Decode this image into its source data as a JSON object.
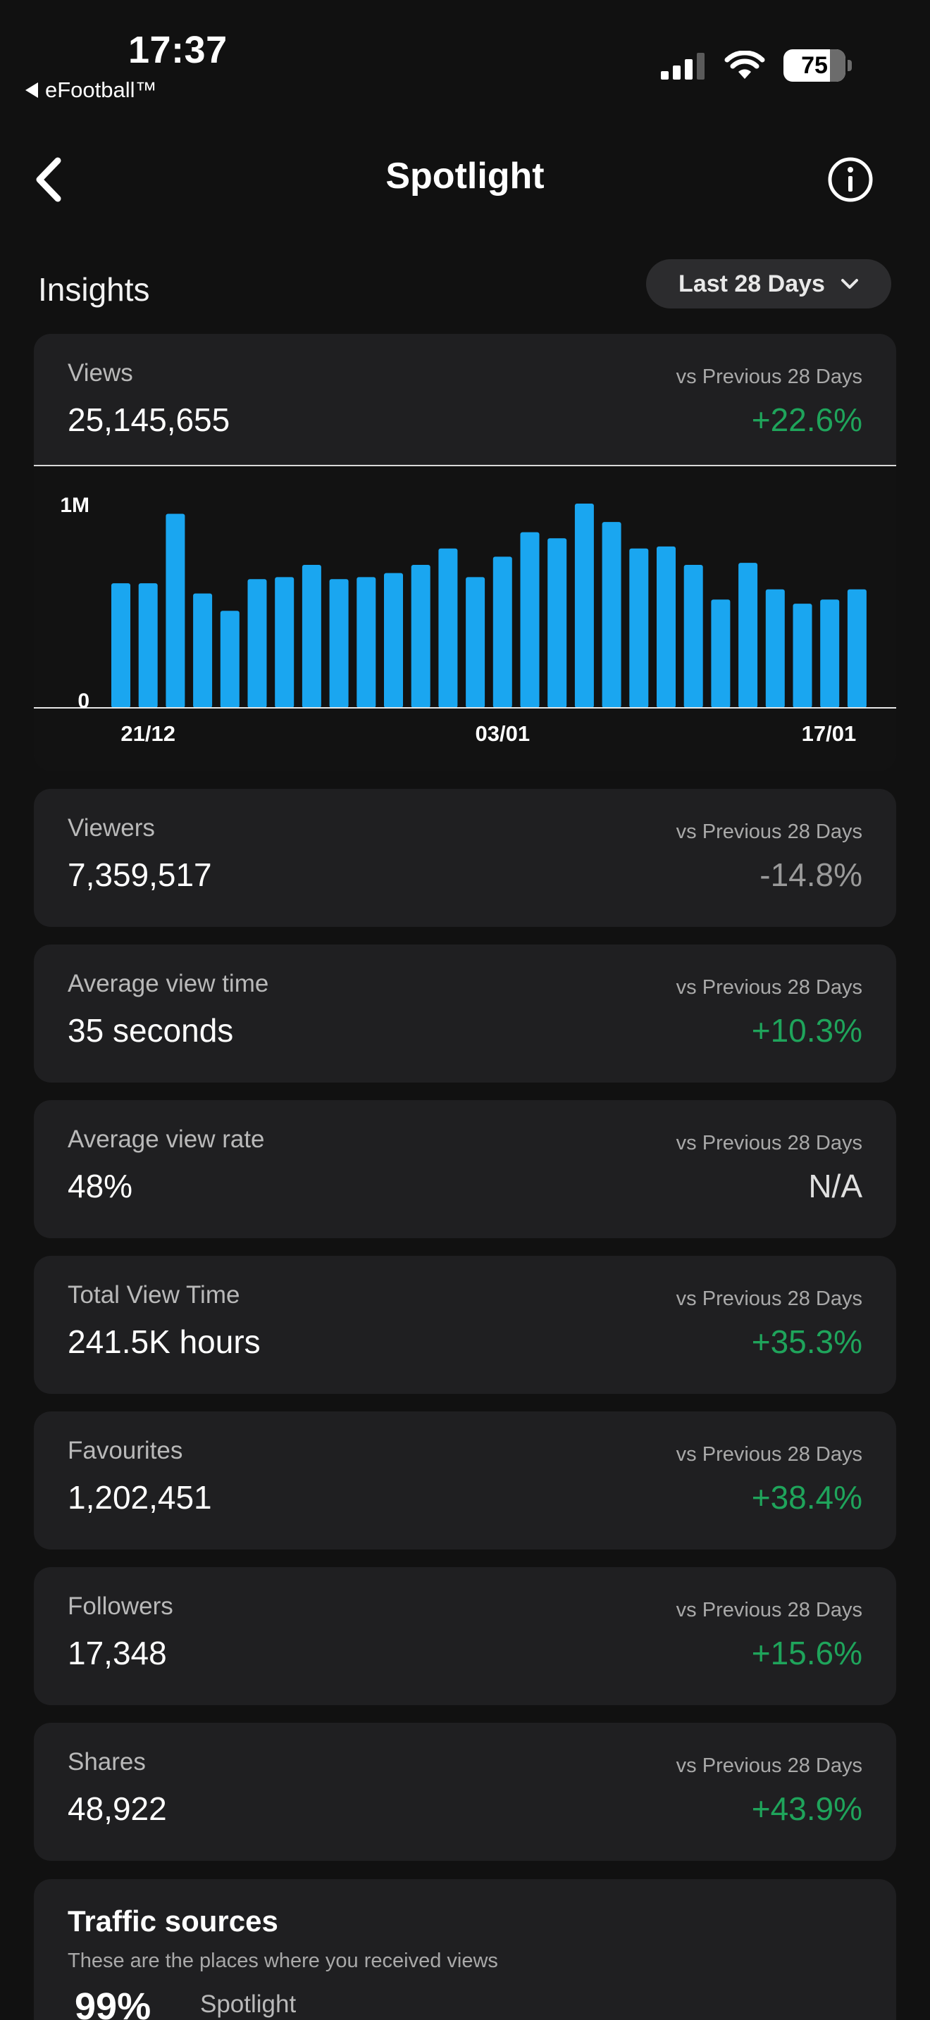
{
  "status_bar": {
    "time": "17:37",
    "back_app": "eFootball™",
    "battery": "75",
    "icons": [
      "signal-icon",
      "wifi-icon",
      "battery-icon"
    ]
  },
  "nav": {
    "title": "Spotlight",
    "back_icon": "chevron-left-icon",
    "info_icon": "info-icon"
  },
  "insights": {
    "title": "Insights",
    "period": "Last 28 Days",
    "period_icon": "chevron-down-icon"
  },
  "views": {
    "label": "Views",
    "value": "25,145,655",
    "compare": "vs Previous 28 Days",
    "change": "+22.6%"
  },
  "chart_data": {
    "type": "bar",
    "title": "",
    "xlabel": "",
    "ylabel": "",
    "x_tick_labels": [
      "21/12",
      "03/01",
      "17/01"
    ],
    "y_tick_labels": [
      "1M",
      "0"
    ],
    "ylim": [
      0,
      1100000
    ],
    "grid": false,
    "bar_color": "#1aa6f0",
    "values": [
      610000,
      610000,
      950000,
      560000,
      475000,
      630000,
      640000,
      700000,
      630000,
      640000,
      660000,
      700000,
      780000,
      640000,
      740000,
      860000,
      830000,
      1000000,
      910000,
      780000,
      790000,
      700000,
      530000,
      710000,
      580000,
      510000,
      530000,
      580000
    ]
  },
  "metrics": [
    {
      "label": "Viewers",
      "value": "7,359,517",
      "compare": "vs Previous 28 Days",
      "change": "-14.8%",
      "trend": "neg"
    },
    {
      "label": "Average view time",
      "value": "35 seconds",
      "compare": "vs Previous 28 Days",
      "change": "+10.3%",
      "trend": "pos"
    },
    {
      "label": "Average view rate",
      "value": "48%",
      "compare": "vs Previous 28 Days",
      "change": "N/A",
      "trend": "na"
    },
    {
      "label": "Total View Time",
      "value": "241.5K hours",
      "compare": "vs Previous 28 Days",
      "change": "+35.3%",
      "trend": "pos"
    },
    {
      "label": "Favourites",
      "value": "1,202,451",
      "compare": "vs Previous 28 Days",
      "change": "+38.4%",
      "trend": "pos"
    },
    {
      "label": "Followers",
      "value": "17,348",
      "compare": "vs Previous 28 Days",
      "change": "+15.6%",
      "trend": "pos"
    },
    {
      "label": "Shares",
      "value": "48,922",
      "compare": "vs Previous 28 Days",
      "change": "+43.9%",
      "trend": "pos"
    }
  ],
  "traffic": {
    "title": "Traffic sources",
    "subtitle": "These are the places where you received views",
    "top_percent": "99%",
    "top_source": "Spotlight"
  },
  "colors": {
    "background": "#111111",
    "card": "#1f1f21",
    "positive": "#1fa45b",
    "negative": "#9a9a9a",
    "bar": "#1aa6f0"
  }
}
